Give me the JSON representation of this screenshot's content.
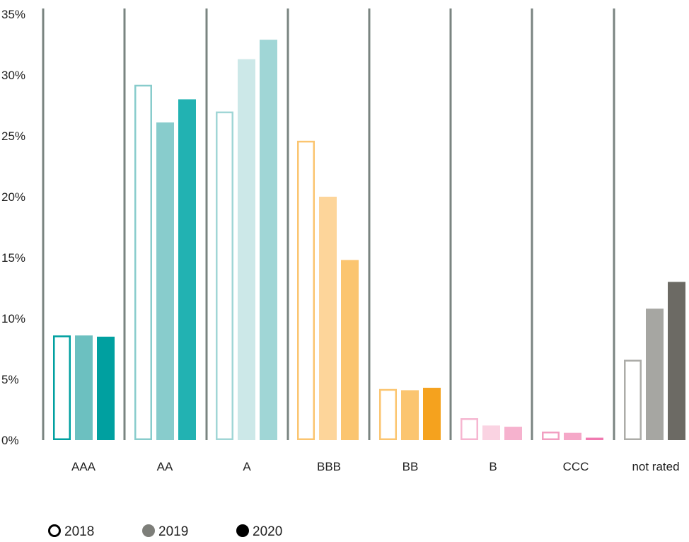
{
  "chart_data": {
    "type": "bar",
    "title": "",
    "xlabel": "",
    "ylabel": "",
    "categories": [
      "AAA",
      "AA",
      "A",
      "BBB",
      "BB",
      "B",
      "CCC",
      "not rated"
    ],
    "series": [
      {
        "name": "2018",
        "values": [
          8.6,
          29.2,
          27.0,
          24.6,
          4.2,
          1.8,
          0.7,
          6.6
        ]
      },
      {
        "name": "2019",
        "values": [
          8.6,
          26.1,
          31.3,
          20.0,
          4.1,
          1.2,
          0.6,
          10.8
        ]
      },
      {
        "name": "2020",
        "values": [
          8.5,
          28.0,
          32.9,
          14.8,
          4.3,
          1.1,
          0.2,
          13.0
        ]
      }
    ],
    "ylim": [
      0,
      35
    ],
    "yticks": [
      "0%",
      "5%",
      "10%",
      "15%",
      "20%",
      "25%",
      "30%",
      "35%"
    ],
    "ytick_values": [
      0,
      5,
      10,
      15,
      20,
      25,
      30,
      35
    ],
    "grid": false,
    "legend_position": "bottom-left",
    "colors": {
      "AAA": [
        "#00a0a0",
        "#6cc0c0",
        "#00a0a0"
      ],
      "AA": [
        "#88cccc",
        "#88cccc",
        "#22b2b2"
      ],
      "A": [
        "#a0d6d6",
        "#cce8e8",
        "#a0d6d6"
      ],
      "BBB": [
        "#fbc570",
        "#fdd59a",
        "#fbc570"
      ],
      "BB": [
        "#fbc570",
        "#fbc570",
        "#f5a21e"
      ],
      "B": [
        "#f6b6d0",
        "#fad3e2",
        "#f6b2ce"
      ],
      "CCC": [
        "#f29fc1",
        "#f5a8c8",
        "#f07ab0"
      ],
      "not rated": [
        "#acaca8",
        "#a6a6a2",
        "#6c6a64"
      ],
      "separator": "#7a8480",
      "legend": [
        "#000000",
        "#7d7e79",
        "#000000"
      ]
    }
  }
}
